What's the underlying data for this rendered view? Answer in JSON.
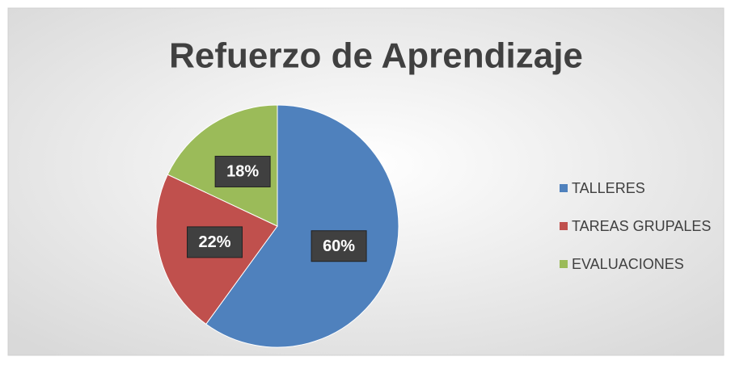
{
  "chart_data": {
    "type": "pie",
    "title": "Refuerzo de Aprendizaje",
    "categories": [
      "TALLERES",
      "TAREAS GRUPALES",
      "EVALUACIONES"
    ],
    "values": [
      60,
      22,
      18
    ],
    "value_labels": [
      "60%",
      "22%",
      "18%"
    ],
    "colors": [
      "#4f81bd",
      "#c0504d",
      "#9bbb59"
    ],
    "legend": "right"
  }
}
